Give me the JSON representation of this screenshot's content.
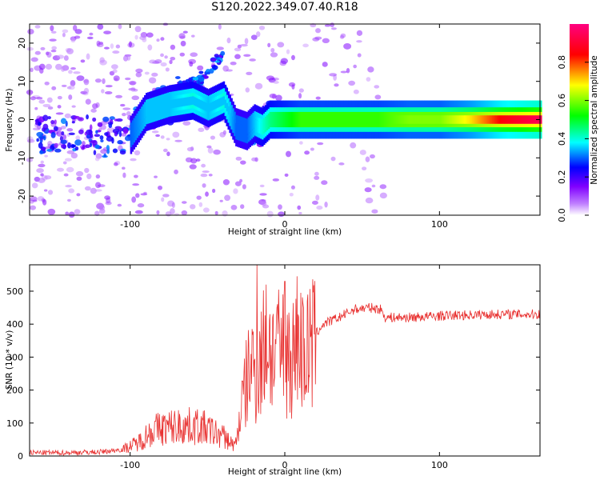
{
  "title": "S120.2022.349.07.40.R18",
  "chart_data": [
    {
      "type": "heatmap",
      "xlabel": "Height of straight line (km)",
      "ylabel": "Frequency (Hz)",
      "xlim": [
        -165,
        165
      ],
      "ylim": [
        -25,
        25
      ],
      "xticks": [
        -100,
        0,
        100
      ],
      "xtick_labels": [
        "-100",
        "0",
        "100"
      ],
      "yticks": [
        -20,
        -10,
        0,
        10,
        20
      ],
      "ytick_labels": [
        "-20",
        "-10",
        "0",
        "10",
        "20"
      ],
      "colorbar": {
        "label": "Normalized spectral amplitude",
        "range": [
          0,
          1
        ],
        "ticks": [
          0.0,
          0.2,
          0.4,
          0.6,
          0.8
        ],
        "tick_labels": [
          "0.0",
          "0.2",
          "0.4",
          "0.6",
          "0.8"
        ],
        "colors": [
          "#ffffff",
          "#d9b3ff",
          "#8000ff",
          "#0000ff",
          "#00ffff",
          "#00ff00",
          "#ffff00",
          "#ff0000",
          "#ff0080"
        ]
      },
      "ridge": {
        "x": [
          -165,
          -140,
          -120,
          -100,
          -90,
          -75,
          -60,
          -50,
          -40,
          -32,
          -25,
          -20,
          -15,
          -10,
          0,
          10,
          20,
          40,
          60,
          80,
          100,
          120,
          140,
          165
        ],
        "y": [
          -4,
          -3,
          -5,
          -4,
          2,
          4,
          5,
          3,
          5,
          -2,
          -3,
          -1,
          -2,
          0,
          0,
          0,
          0,
          0,
          0,
          0,
          0,
          0,
          0,
          0
        ],
        "amplitude": [
          0.15,
          0.2,
          0.3,
          0.3,
          0.35,
          0.35,
          0.4,
          0.35,
          0.4,
          0.3,
          0.3,
          0.35,
          0.4,
          0.45,
          0.5,
          0.55,
          0.55,
          0.55,
          0.55,
          0.6,
          0.6,
          0.7,
          0.85,
          0.95
        ]
      },
      "secondary_branch": {
        "x": [
          -72,
          -62,
          -50,
          -45,
          -40
        ],
        "y": [
          10,
          9,
          12,
          15,
          17
        ]
      }
    },
    {
      "type": "line",
      "xlabel": "Height of straight line (km)",
      "ylabel": "SNR (10 * v/v)",
      "xlim": [
        -165,
        165
      ],
      "ylim": [
        0,
        580
      ],
      "xticks": [
        -100,
        0,
        100
      ],
      "xtick_labels": [
        "-100",
        "0",
        "100"
      ],
      "yticks": [
        0,
        100,
        200,
        300,
        400,
        500
      ],
      "ytick_labels": [
        "0",
        "100",
        "200",
        "300",
        "400",
        "500"
      ],
      "color": "#e8302f",
      "envelope": {
        "x": [
          -165,
          -140,
          -120,
          -105,
          -95,
          -85,
          -70,
          -55,
          -40,
          -32,
          -28,
          -22,
          -18,
          -12,
          -5,
          0,
          5,
          10,
          15,
          20,
          25,
          35,
          45,
          55,
          62,
          65,
          80,
          100,
          120,
          140,
          165
        ],
        "y": [
          10,
          10,
          12,
          20,
          40,
          80,
          90,
          90,
          60,
          30,
          150,
          280,
          250,
          350,
          300,
          330,
          300,
          330,
          300,
          370,
          400,
          420,
          445,
          450,
          445,
          420,
          420,
          425,
          428,
          430,
          430
        ]
      },
      "spikes": {
        "x": [
          -18,
          -16,
          -12,
          -8,
          -5,
          0,
          8,
          12,
          15
        ],
        "y": [
          580,
          350,
          520,
          420,
          450,
          530,
          545,
          450,
          490
        ]
      }
    }
  ]
}
